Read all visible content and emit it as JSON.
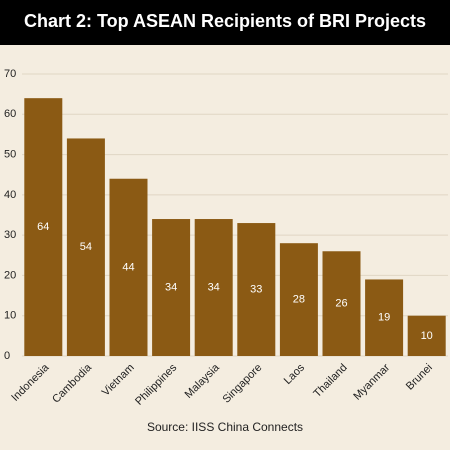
{
  "chart_data": {
    "type": "bar",
    "title": "Chart 2: Top ASEAN Recipients of BRI Projects",
    "categories": [
      "Indonesia",
      "Cambodia",
      "Vietnam",
      "Philippines",
      "Malaysia",
      "Singapore",
      "Laos",
      "Thailand",
      "Myanmar",
      "Brunei"
    ],
    "values": [
      64,
      54,
      44,
      34,
      34,
      33,
      28,
      26,
      19,
      10
    ],
    "color": "#8b5a14",
    "ylim": [
      0,
      70
    ],
    "yticks": [
      0,
      10,
      20,
      30,
      40,
      50,
      60,
      70
    ],
    "grid": true,
    "source": "Source: IISS China Connects"
  }
}
